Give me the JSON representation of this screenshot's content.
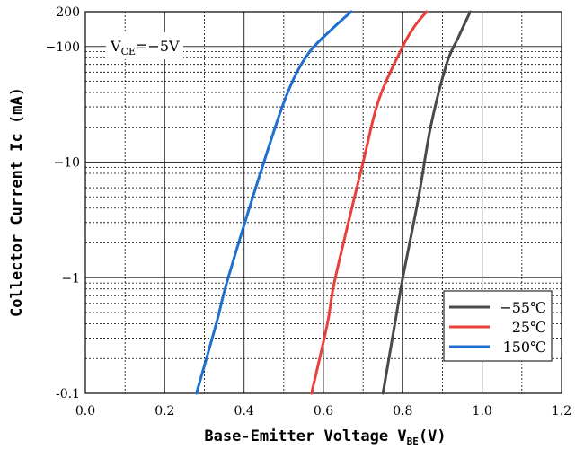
{
  "chart_data": {
    "type": "line",
    "xlabel": "Base-Emitter Voltage V",
    "xlabel_sub": "BE",
    "xlabel_unit": "(V)",
    "ylabel": "Collector  Current Ic (mA)",
    "xlim": [
      0.0,
      1.2
    ],
    "ylim": [
      -0.1,
      -200
    ],
    "yscale": "log",
    "x_ticks": [
      "0.0",
      "0.2",
      "0.4",
      "0.6",
      "0.8",
      "1.0",
      "1.2"
    ],
    "y_ticks": [
      {
        "label": "-0.1",
        "value": 0.1
      },
      {
        "label": "−1",
        "value": 1
      },
      {
        "label": "−10",
        "value": 10
      },
      {
        "label": "−100",
        "value": 100
      },
      {
        "label": "-200",
        "value": 200
      }
    ],
    "grid": true,
    "annotation": {
      "main": "V",
      "sub": "CE",
      "value": "=−5V"
    },
    "legend_position": "bottom-right",
    "series": [
      {
        "name": "−55℃",
        "color": "#4a4a4a",
        "points": [
          [
            0.75,
            0.1
          ],
          [
            0.78,
            0.4
          ],
          [
            0.8,
            1
          ],
          [
            0.84,
            5
          ],
          [
            0.87,
            20
          ],
          [
            0.91,
            70
          ],
          [
            0.94,
            120
          ],
          [
            0.97,
            200
          ]
        ]
      },
      {
        "name": "25℃",
        "color": "#e8403a",
        "points": [
          [
            0.57,
            0.1
          ],
          [
            0.61,
            0.4
          ],
          [
            0.63,
            1
          ],
          [
            0.7,
            10
          ],
          [
            0.74,
            35
          ],
          [
            0.8,
            100
          ],
          [
            0.83,
            150
          ],
          [
            0.86,
            200
          ]
        ]
      },
      {
        "name": "150℃",
        "color": "#1f6fd1",
        "points": [
          [
            0.28,
            0.1
          ],
          [
            0.33,
            0.4
          ],
          [
            0.36,
            1
          ],
          [
            0.45,
            10
          ],
          [
            0.51,
            40
          ],
          [
            0.56,
            85
          ],
          [
            0.62,
            140
          ],
          [
            0.67,
            200
          ]
        ]
      }
    ]
  }
}
